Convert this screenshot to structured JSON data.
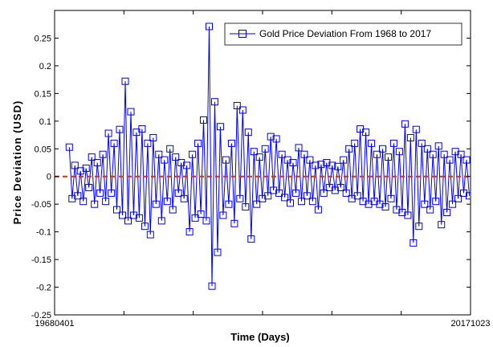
{
  "chart_data": {
    "type": "line",
    "title": "",
    "xlabel": "Time (Days)",
    "ylabel": "Price Deviation (USD)",
    "x_tick_labels": [
      "19680401",
      "20171023"
    ],
    "xlim": [
      "19680401",
      "20171023"
    ],
    "ylim": [
      -0.25,
      0.3
    ],
    "y_ticks": [
      -0.25,
      -0.2,
      -0.15,
      -0.1,
      -0.05,
      0,
      0.05,
      0.1,
      0.15,
      0.2,
      0.25
    ],
    "y_tick_labels": [
      "-0.25",
      "-0.2",
      "-0.15",
      "-0.1",
      "-0.05",
      "0",
      "0.05",
      "0.1",
      "0.15",
      "0.2",
      "0.25"
    ],
    "grid": false,
    "legend_position": "top-right",
    "series": [
      {
        "name": "Gold Price Deviation From 1968 to 2017",
        "color": "#0000ff",
        "marker": "square",
        "x_start": "19700101",
        "x_end": "20170901",
        "values": [
          0.053,
          -0.04,
          0.02,
          -0.035,
          0.01,
          -0.045,
          0.015,
          -0.02,
          0.035,
          -0.05,
          0.025,
          -0.03,
          0.04,
          -0.045,
          0.078,
          -0.03,
          0.06,
          -0.06,
          0.085,
          -0.07,
          0.172,
          -0.08,
          0.117,
          -0.07,
          0.08,
          -0.075,
          0.086,
          -0.09,
          0.06,
          -0.105,
          0.07,
          -0.05,
          0.04,
          -0.08,
          0.03,
          -0.045,
          0.05,
          -0.06,
          0.035,
          -0.03,
          0.025,
          -0.04,
          0.02,
          -0.1,
          0.04,
          -0.075,
          0.06,
          -0.068,
          0.102,
          -0.08,
          0.271,
          -0.198,
          0.135,
          -0.137,
          0.09,
          -0.07,
          0.03,
          -0.05,
          0.06,
          -0.085,
          0.128,
          -0.04,
          0.12,
          -0.055,
          0.08,
          -0.113,
          0.045,
          -0.05,
          0.035,
          -0.04,
          0.05,
          -0.035,
          0.072,
          -0.025,
          0.068,
          -0.03,
          0.04,
          -0.038,
          0.03,
          -0.048,
          0.025,
          -0.03,
          0.052,
          -0.045,
          0.04,
          -0.035,
          0.03,
          -0.045,
          0.02,
          -0.06,
          0.022,
          -0.03,
          0.025,
          -0.02,
          0.02,
          -0.025,
          0.018,
          -0.02,
          0.03,
          -0.03,
          0.05,
          -0.04,
          0.06,
          -0.035,
          0.086,
          -0.045,
          0.08,
          -0.05,
          0.06,
          -0.045,
          0.04,
          -0.05,
          0.05,
          -0.055,
          0.035,
          -0.04,
          0.06,
          -0.06,
          0.045,
          -0.065,
          0.095,
          -0.07,
          0.07,
          -0.12,
          0.085,
          -0.09,
          0.06,
          -0.05,
          0.05,
          -0.06,
          0.04,
          -0.045,
          0.055,
          -0.087,
          0.04,
          -0.065,
          0.03,
          -0.05,
          0.045,
          -0.04,
          0.04,
          -0.03,
          0.03,
          -0.035
        ]
      }
    ],
    "reference_lines": [
      {
        "y": 0,
        "color": "#e03000",
        "style": "dashed"
      }
    ]
  }
}
